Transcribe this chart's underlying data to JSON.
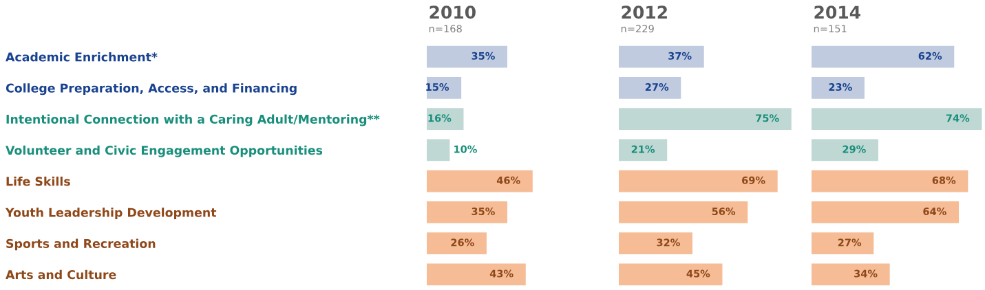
{
  "chart_data": [
    {
      "type": "bar",
      "orientation": "horizontal",
      "title": "2010",
      "subtitle": "n=168",
      "tick_labels": "y",
      "value_labels": [
        "35%",
        "15%",
        "16%",
        "10%",
        "46%",
        "35%",
        "26%",
        "43%"
      ],
      "categories": [
        "Academic Enrichment*",
        "College Preparation, Access, and Financing",
        "Intentional Connection with a Caring Adult/Mentoring**",
        "Volunteer and Civic Engagement Opportunities",
        "Life Skills",
        "Youth Leadership Development",
        "Sports and Recreation",
        "Arts and Culture"
      ],
      "values": [
        35,
        15,
        16,
        10,
        46,
        35,
        26,
        43
      ],
      "colors": [
        "#c0cbe0",
        "#c0cbe0",
        "#c0d8d4",
        "#c0d8d4",
        "#f5bc96",
        "#f5bc96",
        "#f5bc96",
        "#f5bc96"
      ]
    },
    {
      "type": "bar",
      "orientation": "horizontal",
      "title": "2012",
      "subtitle": "n=229",
      "tick_labels": false,
      "value_labels": [
        "37%",
        "27%",
        "75%",
        "21%",
        "69%",
        "56%",
        "32%",
        "45%"
      ],
      "categories": [
        null,
        null,
        null,
        null,
        null,
        null,
        null,
        null
      ],
      "values": [
        37,
        27,
        75,
        21,
        69,
        56,
        32,
        45
      ],
      "colors": [
        "#c0cbe0",
        "#c0cbe0",
        "#c0d8d4",
        "#c0d8d4",
        "#f5bc96",
        "#f5bc96",
        "#f5bc96",
        "#f5bc96"
      ]
    },
    {
      "type": "bar",
      "orientation": "horizontal",
      "title": "2014",
      "subtitle": "n=151",
      "tick_labels": false,
      "value_labels": [
        "62%",
        "23%",
        "74%",
        "29%",
        "68%",
        "64%",
        "27%",
        "34%"
      ],
      "categories": [
        null,
        null,
        null,
        null,
        null,
        null,
        null,
        null
      ],
      "values": [
        62,
        23,
        74,
        29,
        68,
        64,
        27,
        34
      ],
      "colors": [
        "#c0cbe0",
        "#c0cbe0",
        "#c0d8d4",
        "#c0d8d4",
        "#f5bc96",
        "#f5bc96",
        "#f5bc96",
        "#f5bc96"
      ]
    }
  ]
}
